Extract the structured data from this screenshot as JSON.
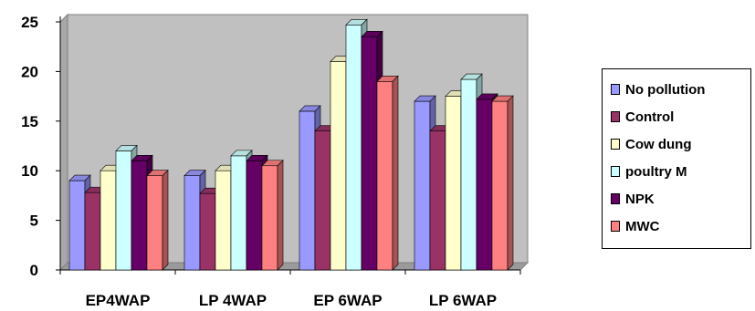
{
  "chart_data": {
    "type": "bar",
    "categories": [
      "EP4WAP",
      "LP 4WAP",
      "EP 6WAP",
      "LP 6WAP"
    ],
    "series": [
      {
        "name": "No pollution",
        "color": "#9999ff",
        "values": [
          9,
          9.5,
          16,
          17
        ]
      },
      {
        "name": "Control",
        "color": "#993366",
        "values": [
          7.8,
          7.7,
          14,
          14
        ]
      },
      {
        "name": "Cow dung",
        "color": "#ffffcc",
        "values": [
          10,
          10,
          21,
          17.5
        ]
      },
      {
        "name": "poultry  M",
        "color": "#ccffff",
        "values": [
          12,
          11.5,
          24.7,
          19.2
        ]
      },
      {
        "name": "NPK",
        "color": "#660066",
        "values": [
          11,
          11,
          23.5,
          17.2
        ]
      },
      {
        "name": "MWC",
        "color": "#ff8080",
        "values": [
          9.5,
          10.5,
          19,
          17
        ]
      }
    ],
    "y_ticks": [
      "0",
      "5",
      "10",
      "15",
      "20",
      "25"
    ],
    "ylim": [
      0,
      25
    ],
    "title": "",
    "xlabel": "",
    "ylabel": "",
    "grid": false,
    "plot_background": "#c0c0c0",
    "legend_position": "right"
  }
}
